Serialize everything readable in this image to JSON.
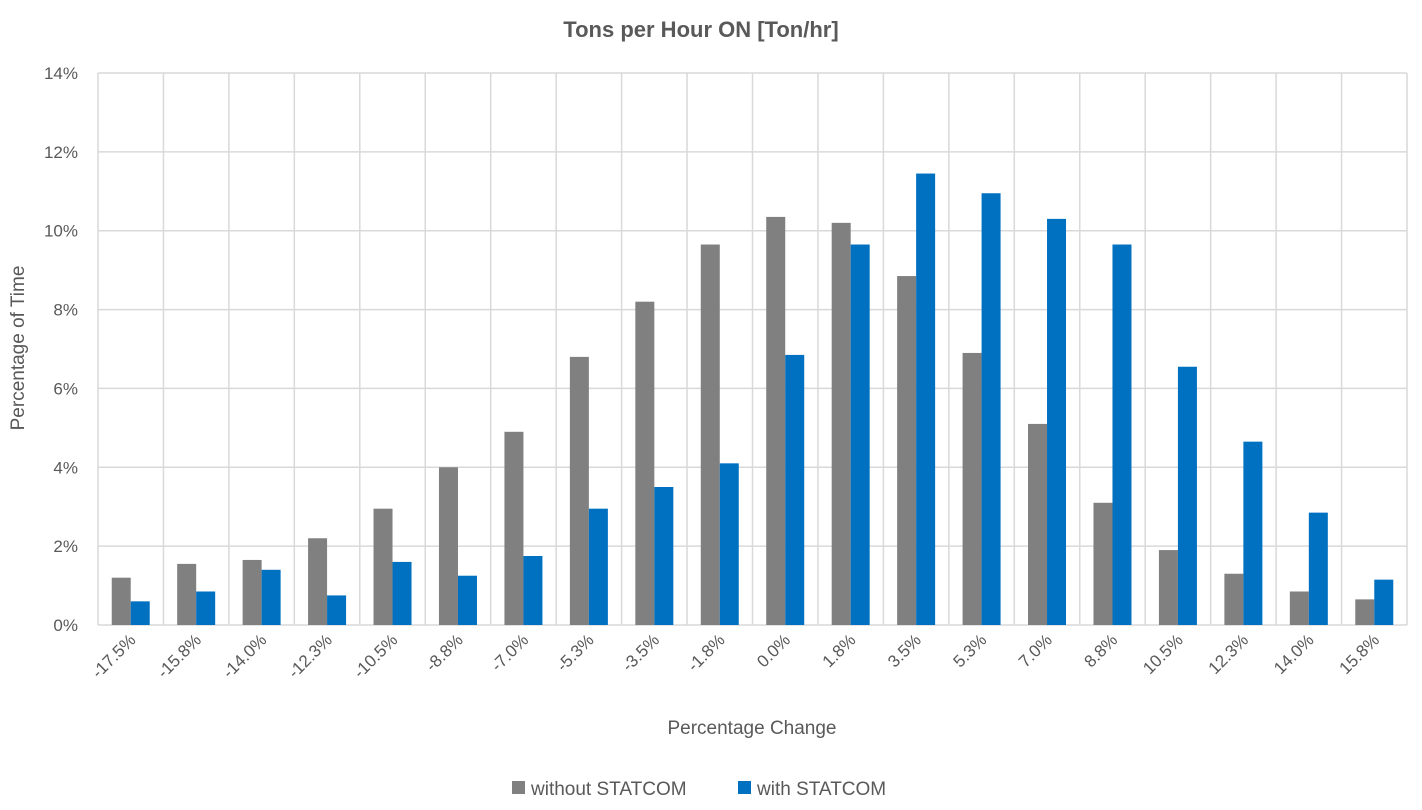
{
  "chart_data": {
    "type": "bar",
    "title": "Tons per Hour ON [Ton/hr]",
    "xlabel": "Percentage Change",
    "ylabel": "Percentage of Time",
    "categories": [
      "-17.5%",
      "-15.8%",
      "-14.0%",
      "-12.3%",
      "-10.5%",
      "-8.8%",
      "-7.0%",
      "-5.3%",
      "-3.5%",
      "-1.8%",
      "0.0%",
      "1.8%",
      "3.5%",
      "5.3%",
      "7.0%",
      "8.8%",
      "10.5%",
      "12.3%",
      "14.0%",
      "15.8%"
    ],
    "series": [
      {
        "name": "without STATCOM",
        "color": "#808080",
        "values": [
          1.2,
          1.55,
          1.65,
          2.2,
          2.95,
          4.0,
          4.9,
          6.8,
          8.2,
          9.65,
          10.35,
          10.2,
          8.85,
          6.9,
          5.1,
          3.1,
          1.9,
          1.3,
          0.85,
          0.65
        ]
      },
      {
        "name": "with STATCOM",
        "color": "#0070C0",
        "values": [
          0.6,
          0.85,
          1.4,
          0.75,
          1.6,
          1.25,
          1.75,
          2.95,
          3.5,
          4.1,
          6.85,
          9.65,
          11.45,
          10.95,
          10.3,
          9.65,
          6.55,
          4.65,
          2.85,
          1.15
        ]
      }
    ],
    "ylim": [
      0,
      14
    ],
    "yticks": [
      "0%",
      "2%",
      "4%",
      "6%",
      "8%",
      "10%",
      "12%",
      "14%"
    ],
    "ytick_values": [
      0,
      2,
      4,
      6,
      8,
      10,
      12,
      14
    ],
    "grid": true,
    "legend_position": "bottom"
  }
}
